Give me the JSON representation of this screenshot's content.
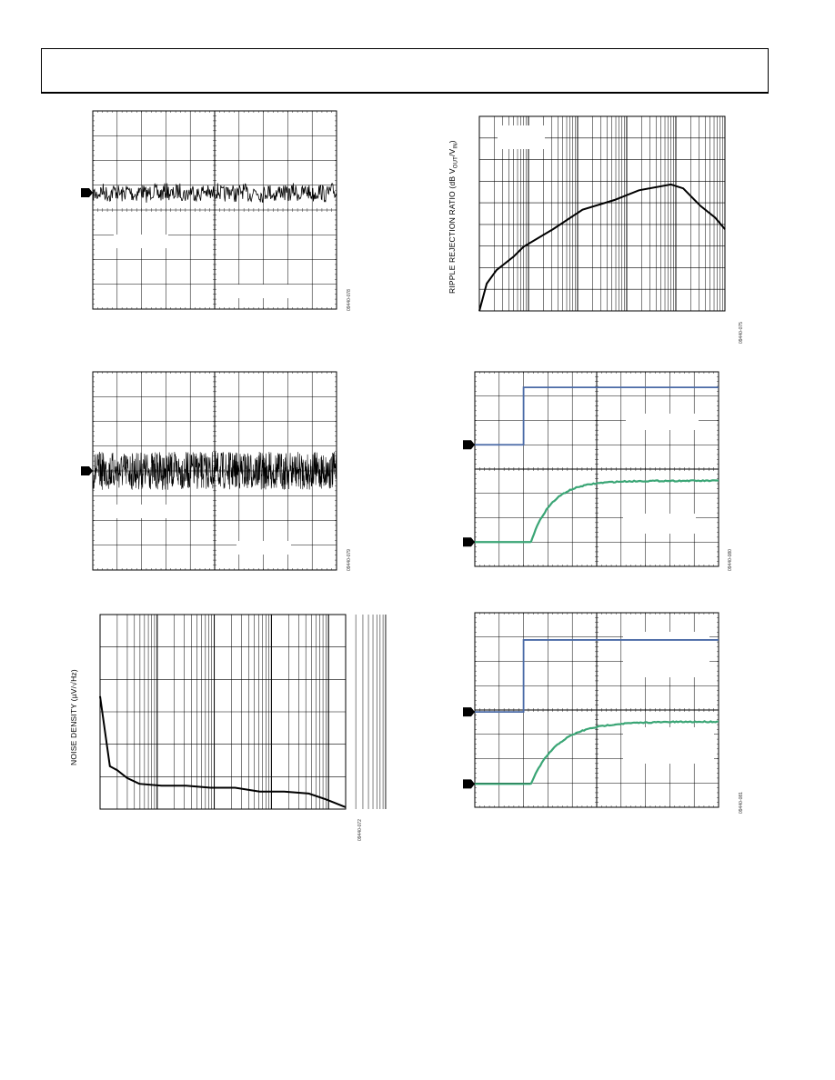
{
  "figures": {
    "ripple": {
      "ylabel_main": "RIPPLE REJECTION RATIO (dB V",
      "ylabel_sub1": "OUT",
      "ylabel_mid": "/V",
      "ylabel_sub2": "IN",
      "ylabel_end": ")",
      "code": "09440-075"
    },
    "noise": {
      "ylabel_main": "NOISE DENSITY (µV/√Hz)",
      "code": "09440-072"
    },
    "scope1": {
      "code": "09440-078"
    },
    "scope2": {
      "code": "09440-079"
    },
    "scope3": {
      "code": "09440-080"
    },
    "scope4": {
      "code": "09440-081"
    }
  },
  "chart_data": [
    {
      "type": "line",
      "id": "scope1",
      "description_of_trace": "noise waveform",
      "series": [
        {
          "values": []
        }
      ]
    },
    {
      "type": "line",
      "id": "scope2",
      "series": [
        {
          "values": []
        }
      ]
    },
    {
      "type": "line",
      "id": "noise",
      "xscale": "log",
      "series": [
        {
          "values": [
            0.95,
            0.62,
            0.58,
            0.55,
            0.5,
            0.45,
            0.43,
            0.42,
            0.42,
            0.41,
            0.41,
            0.4,
            0.4,
            0.39,
            0.38,
            0.35,
            0.32,
            0.3
          ]
        }
      ]
    },
    {
      "type": "line",
      "id": "ripple",
      "xscale": "log",
      "series": [
        {
          "values": [
            0.0,
            0.15,
            0.2,
            0.25,
            0.32,
            0.38,
            0.45,
            0.52,
            0.55,
            0.57,
            0.6,
            0.58,
            0.5,
            0.4
          ]
        }
      ]
    },
    {
      "type": "line",
      "id": "scope3",
      "series": [
        {
          "name": "",
          "values": []
        },
        {
          "name": "",
          "values": []
        }
      ]
    },
    {
      "type": "line",
      "id": "scope4",
      "series": [
        {
          "name": "",
          "values": []
        },
        {
          "name": "",
          "values": []
        }
      ]
    }
  ],
  "colors": {
    "trace_blue": "#4a6aa6",
    "trace_green": "#3aa575",
    "grid": "#000000"
  }
}
